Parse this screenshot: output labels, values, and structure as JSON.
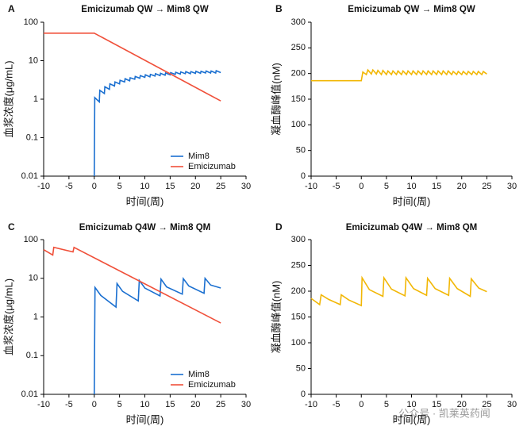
{
  "chart_data": [
    {
      "type": "line",
      "panel": "A",
      "title": "Emicizumab QW → Mim8 QW",
      "xlabel": "时间(周)",
      "ylabel": "血浆浓度(μg/mL)",
      "xlim": [
        -10,
        30
      ],
      "ylim": [
        0.01,
        100
      ],
      "log_scale": true,
      "legend": "lower right",
      "xticks": [
        -10,
        -5,
        0,
        5,
        10,
        15,
        20,
        25,
        30
      ],
      "yticks": [
        0.01,
        0.1,
        1,
        10,
        100
      ],
      "series": [
        {
          "name": "Mim8",
          "color": "#1a6fd0",
          "x": [
            0,
            0.1,
            1,
            1.1,
            2,
            2.1,
            3,
            3.1,
            4,
            4.1,
            5,
            5.1,
            6,
            6.1,
            7,
            7.1,
            8,
            8.1,
            9,
            9.1,
            10,
            10.1,
            11,
            11.1,
            12,
            12.1,
            13,
            13.1,
            14,
            14.1,
            15,
            15.1,
            16,
            16.1,
            17,
            17.1,
            18,
            18.1,
            19,
            19.1,
            20,
            20.1,
            21,
            21.1,
            22,
            22.1,
            23,
            23.1,
            24,
            24.1,
            25
          ],
          "values": [
            0.01,
            1.1,
            0.85,
            1.7,
            1.4,
            2.1,
            1.8,
            2.5,
            2.2,
            2.8,
            2.5,
            3.1,
            2.8,
            3.4,
            3.0,
            3.6,
            3.3,
            3.9,
            3.5,
            4.1,
            3.7,
            4.3,
            3.8,
            4.4,
            4.0,
            4.6,
            4.1,
            4.7,
            4.2,
            4.8,
            4.3,
            4.9,
            4.4,
            5.0,
            4.5,
            5.1,
            4.6,
            5.2,
            4.6,
            5.2,
            4.7,
            5.3,
            4.7,
            5.3,
            4.8,
            5.4,
            4.8,
            5.4,
            4.8,
            5.5,
            4.9
          ]
        },
        {
          "name": "Emicizumab",
          "color": "#f0503a",
          "x": [
            -10,
            0,
            25
          ],
          "values": [
            52,
            52,
            0.9
          ]
        }
      ]
    },
    {
      "type": "line",
      "panel": "B",
      "title": "Emicizumab QW → Mim8 QW",
      "xlabel": "时间(周)",
      "ylabel": "凝血酶峰值(nM)",
      "xlim": [
        -10,
        30
      ],
      "ylim": [
        0,
        300
      ],
      "xticks": [
        -10,
        -5,
        0,
        5,
        10,
        15,
        20,
        25,
        30
      ],
      "yticks": [
        0,
        50,
        100,
        150,
        200,
        250,
        300
      ],
      "series": [
        {
          "color": "#f2b705",
          "x": [
            -10,
            0,
            0.3,
            1,
            1.3,
            2,
            2.3,
            3,
            3.3,
            4,
            4.3,
            5,
            5.3,
            6,
            6.3,
            7,
            7.3,
            8,
            8.3,
            9,
            9.3,
            10,
            10.3,
            11,
            11.3,
            12,
            12.3,
            13,
            13.3,
            14,
            14.3,
            15,
            15.3,
            16,
            16.3,
            17,
            17.3,
            18,
            18.3,
            19,
            19.3,
            20,
            20.3,
            21,
            21.3,
            22,
            22.3,
            23,
            23.3,
            24,
            24.3,
            25
          ],
          "values": [
            186,
            186,
            203,
            198,
            207,
            199,
            207,
            199,
            206,
            198,
            206,
            198,
            205,
            198,
            205,
            198,
            205,
            198,
            205,
            198,
            205,
            198,
            205,
            198,
            205,
            198,
            205,
            198,
            205,
            198,
            205,
            198,
            205,
            198,
            205,
            198,
            205,
            198,
            204,
            198,
            204,
            198,
            204,
            198,
            204,
            198,
            204,
            198,
            204,
            198,
            204,
            199
          ]
        }
      ]
    },
    {
      "type": "line",
      "panel": "C",
      "title": "Emicizumab Q4W → Mim8 QM",
      "xlabel": "时间(周)",
      "ylabel": "血浆浓度(μg/mL)",
      "xlim": [
        -10,
        30
      ],
      "ylim": [
        0.01,
        100
      ],
      "log_scale": true,
      "legend": "lower right",
      "xticks": [
        -10,
        -5,
        0,
        5,
        10,
        15,
        20,
        25,
        30
      ],
      "yticks": [
        0.01,
        0.1,
        1,
        10,
        100
      ],
      "series": [
        {
          "name": "Mim8",
          "color": "#1a6fd0",
          "x": [
            0,
            0.15,
            1.3,
            4.3,
            4.5,
            5.6,
            8.7,
            8.9,
            10,
            13,
            13.2,
            14.3,
            17.4,
            17.6,
            18.7,
            21.7,
            21.9,
            23,
            25
          ],
          "values": [
            0.01,
            5.8,
            3.6,
            1.8,
            7.3,
            4.6,
            2.6,
            8.8,
            5.6,
            3.5,
            9.5,
            6.0,
            3.9,
            9.8,
            6.3,
            4.1,
            10,
            6.7,
            5.6
          ]
        },
        {
          "name": "Emicizumab",
          "color": "#f0503a",
          "x": [
            -10,
            -8.2,
            -8,
            -4.2,
            -4,
            25
          ],
          "values": [
            55,
            40,
            63,
            48,
            63,
            0.7
          ]
        }
      ]
    },
    {
      "type": "line",
      "panel": "D",
      "title": "Emicizumab Q4W → Mim8 QM",
      "xlabel": "时间(周)",
      "ylabel": "凝血酶峰值(nM)",
      "xlim": [
        -10,
        30
      ],
      "ylim": [
        0,
        300
      ],
      "xticks": [
        -10,
        -5,
        0,
        5,
        10,
        15,
        20,
        25,
        30
      ],
      "yticks": [
        0,
        50,
        100,
        150,
        200,
        250,
        300
      ],
      "series": [
        {
          "color": "#f2b705",
          "x": [
            -10,
            -8.3,
            -8,
            -6.5,
            -4.2,
            -4,
            -2.5,
            0,
            0.15,
            1.6,
            4.3,
            4.5,
            6,
            8.7,
            8.9,
            10.4,
            13,
            13.2,
            14.7,
            17.4,
            17.6,
            19.1,
            21.7,
            21.9,
            23.4,
            25
          ],
          "values": [
            186,
            174,
            193,
            184,
            174,
            193,
            183,
            172,
            226,
            203,
            190,
            226,
            204,
            191,
            226,
            205,
            192,
            225,
            205,
            192,
            225,
            205,
            190,
            224,
            206,
            199
          ]
        }
      ]
    }
  ],
  "watermark": "公众号 · 凯莱英药闻"
}
